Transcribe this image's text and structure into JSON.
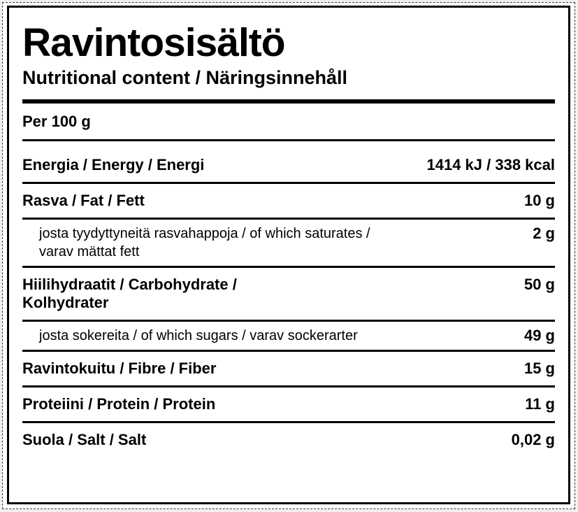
{
  "label": {
    "title": "Ravintosisältö",
    "subtitle": "Nutritional content / Näringsinnehåll",
    "serving": "Per 100 g",
    "rows": [
      {
        "label": "Energia / Energy / Energi",
        "value": "1414 kJ / 338 kcal",
        "sub": false
      },
      {
        "label": "Rasva / Fat / Fett",
        "value": "10 g",
        "sub": false
      },
      {
        "label": "josta tyydyttyneitä rasvahappoja / of which saturates /\nvarav mättat fett",
        "value": "2 g",
        "sub": true
      },
      {
        "label": "Hiilihydraatit / Carbohydrate /\nKolhydrater",
        "value": "50 g",
        "sub": false
      },
      {
        "label": "josta sokereita / of which sugars / varav sockerarter",
        "value": "49 g",
        "sub": true
      },
      {
        "label": "Ravintokuitu / Fibre / Fiber",
        "value": "15 g",
        "sub": false
      },
      {
        "label": "Proteiini / Protein / Protein",
        "value": "11 g",
        "sub": false
      },
      {
        "label": "Suola / Salt / Salt",
        "value": "0,02 g",
        "sub": false
      }
    ],
    "colors": {
      "text": "#000000",
      "background": "#ffffff",
      "page_background": "#f0f0f0",
      "rule": "#000000"
    }
  }
}
